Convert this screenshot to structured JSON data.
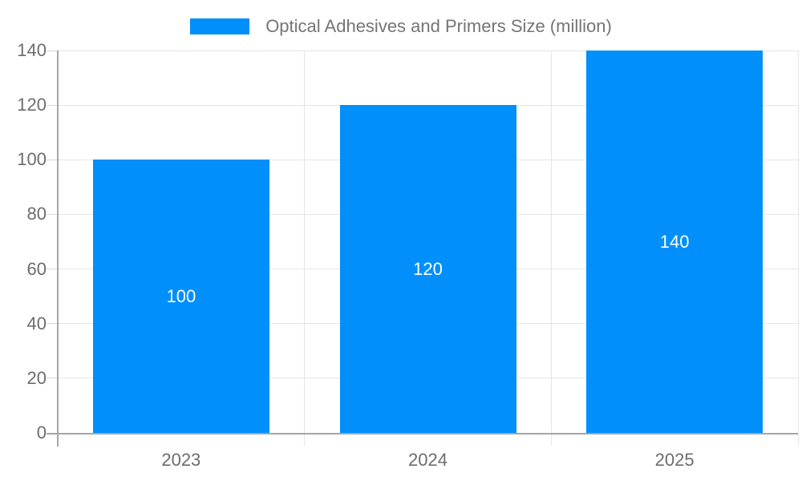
{
  "chart_data": {
    "type": "bar",
    "title": "Optical Adhesives and Primers Size (million)",
    "categories": [
      "2023",
      "2024",
      "2025"
    ],
    "values": [
      100,
      120,
      140
    ],
    "bar_labels": [
      "100",
      "120",
      "140"
    ],
    "xlabel": "",
    "ylabel": "",
    "ylim": [
      0,
      140
    ],
    "yticks": [
      0,
      20,
      40,
      60,
      80,
      100,
      120,
      140
    ],
    "grid": true,
    "legend_position": "top",
    "legend_swatch": "blue-rect",
    "colors": {
      "bar": "#008FFB",
      "bar_label": "#ffffff",
      "grid": "#e5e5e5",
      "tick": "#d9d9d9",
      "axis": "#a6a6a6",
      "axis_text": "#6d6d6d",
      "title_text": "#757575",
      "background": "#ffffff"
    }
  }
}
